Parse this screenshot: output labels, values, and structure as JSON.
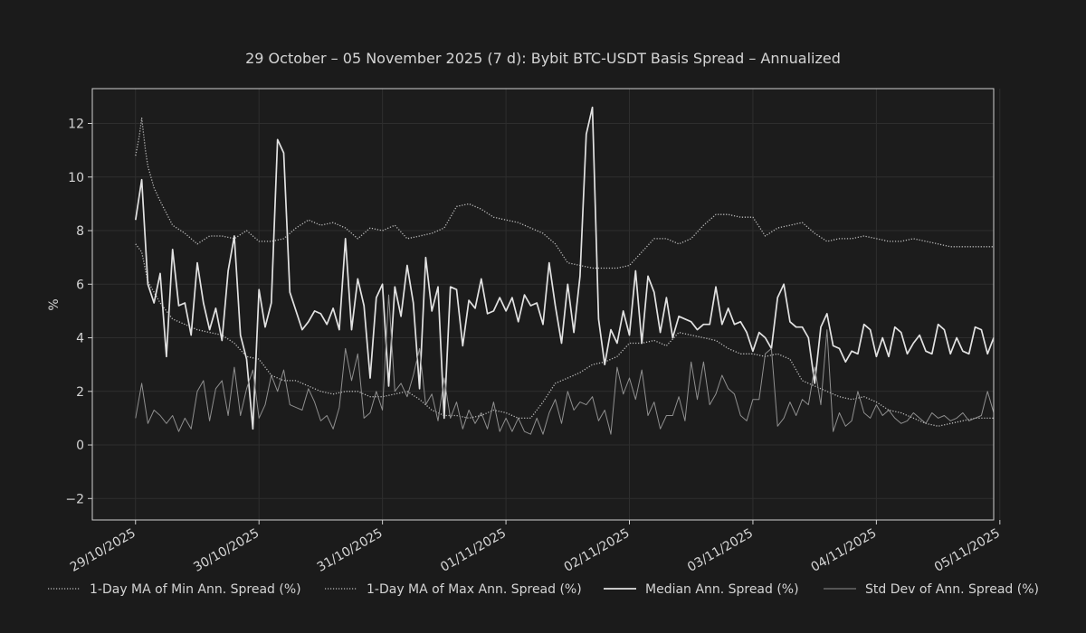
{
  "chart_data": {
    "type": "line",
    "title": "29 October – 05 November 2025 (7 d): Bybit BTC-USDT Basis Spread – Annualized",
    "xlabel": "",
    "ylabel": "%",
    "ylim": [
      -2.8,
      13.3
    ],
    "xlim": [
      -0.35,
      6.95
    ],
    "yticks": [
      -2,
      0,
      2,
      4,
      6,
      8,
      10,
      12
    ],
    "ytick_labels": [
      "−2",
      "0",
      "2",
      "4",
      "6",
      "8",
      "10",
      "12"
    ],
    "xticks": [
      0,
      1,
      2,
      3,
      4,
      5,
      6,
      7
    ],
    "xtick_labels": [
      "29/10/2025",
      "30/10/2025",
      "31/10/2025",
      "01/11/2025",
      "02/11/2025",
      "03/11/2025",
      "04/11/2025",
      "05/11/2025"
    ],
    "grid": true,
    "legend_position": "bottom",
    "series": [
      {
        "name": "1-Day MA of Min Ann. Spread (%)",
        "style": "dotted",
        "color": "#bdbdbd",
        "x": [
          0,
          0.05,
          0.1,
          0.2,
          0.3,
          0.4,
          0.5,
          0.6,
          0.7,
          0.8,
          0.9,
          1.0,
          1.1,
          1.2,
          1.3,
          1.4,
          1.5,
          1.6,
          1.7,
          1.8,
          1.9,
          2.0,
          2.1,
          2.2,
          2.3,
          2.4,
          2.5,
          2.6,
          2.7,
          2.8,
          2.9,
          3.0,
          3.1,
          3.2,
          3.3,
          3.4,
          3.5,
          3.6,
          3.7,
          3.8,
          3.9,
          4.0,
          4.1,
          4.2,
          4.3,
          4.4,
          4.5,
          4.6,
          4.7,
          4.8,
          4.9,
          5.0,
          5.1,
          5.2,
          5.3,
          5.4,
          5.5,
          5.6,
          5.7,
          5.8,
          5.9,
          6.0,
          6.1,
          6.2,
          6.3,
          6.4,
          6.5,
          6.6,
          6.7,
          6.8,
          6.9,
          6.95
        ],
        "values": [
          7.5,
          7.2,
          6.1,
          5.3,
          4.7,
          4.5,
          4.3,
          4.2,
          4.1,
          3.8,
          3.3,
          3.2,
          2.6,
          2.4,
          2.4,
          2.2,
          2.0,
          1.9,
          2.0,
          2.0,
          1.8,
          1.8,
          1.9,
          2.0,
          1.7,
          1.3,
          1.1,
          1.1,
          1.0,
          1.1,
          1.3,
          1.2,
          1.0,
          1.0,
          1.6,
          2.3,
          2.5,
          2.7,
          3.0,
          3.1,
          3.3,
          3.8,
          3.8,
          3.9,
          3.7,
          4.2,
          4.1,
          4.0,
          3.9,
          3.6,
          3.4,
          3.4,
          3.3,
          3.4,
          3.2,
          2.4,
          2.2,
          2.0,
          1.8,
          1.7,
          1.8,
          1.6,
          1.3,
          1.2,
          1.0,
          0.8,
          0.7,
          0.8,
          0.9,
          1.0,
          1.0,
          1.0
        ]
      },
      {
        "name": "1-Day MA of Max Ann. Spread (%)",
        "style": "dotted",
        "color": "#bdbdbd",
        "x": [
          0,
          0.03,
          0.05,
          0.08,
          0.1,
          0.15,
          0.2,
          0.3,
          0.4,
          0.5,
          0.6,
          0.7,
          0.8,
          0.9,
          1.0,
          1.1,
          1.2,
          1.3,
          1.4,
          1.5,
          1.6,
          1.7,
          1.8,
          1.9,
          2.0,
          2.1,
          2.2,
          2.3,
          2.4,
          2.5,
          2.6,
          2.7,
          2.8,
          2.9,
          3.0,
          3.1,
          3.2,
          3.3,
          3.4,
          3.5,
          3.6,
          3.7,
          3.8,
          3.9,
          4.0,
          4.1,
          4.2,
          4.3,
          4.4,
          4.5,
          4.6,
          4.7,
          4.8,
          4.9,
          5.0,
          5.1,
          5.2,
          5.3,
          5.4,
          5.5,
          5.6,
          5.7,
          5.8,
          5.9,
          6.0,
          6.1,
          6.2,
          6.3,
          6.4,
          6.5,
          6.6,
          6.7,
          6.8,
          6.9,
          6.95
        ],
        "values": [
          10.8,
          11.5,
          12.2,
          11.0,
          10.4,
          9.6,
          9.1,
          8.2,
          7.9,
          7.5,
          7.8,
          7.8,
          7.7,
          8.0,
          7.6,
          7.6,
          7.7,
          8.1,
          8.4,
          8.2,
          8.3,
          8.1,
          7.7,
          8.1,
          8.0,
          8.2,
          7.7,
          7.8,
          7.9,
          8.1,
          8.9,
          9.0,
          8.8,
          8.5,
          8.4,
          8.3,
          8.1,
          7.9,
          7.5,
          6.8,
          6.7,
          6.6,
          6.6,
          6.6,
          6.7,
          7.2,
          7.7,
          7.7,
          7.5,
          7.7,
          8.2,
          8.6,
          8.6,
          8.5,
          8.5,
          7.8,
          8.1,
          8.2,
          8.3,
          7.9,
          7.6,
          7.7,
          7.7,
          7.8,
          7.7,
          7.6,
          7.6,
          7.7,
          7.6,
          7.5,
          7.4,
          7.4,
          7.4,
          7.4,
          7.4
        ]
      },
      {
        "name": "Median Ann. Spread (%)",
        "style": "solid",
        "color": "#e2e2e2",
        "x": [
          0,
          0.05,
          0.1,
          0.15,
          0.2,
          0.25,
          0.3,
          0.35,
          0.4,
          0.45,
          0.5,
          0.55,
          0.6,
          0.65,
          0.7,
          0.75,
          0.8,
          0.85,
          0.9,
          0.95,
          1.0,
          1.05,
          1.1,
          1.15,
          1.2,
          1.25,
          1.3,
          1.35,
          1.4,
          1.45,
          1.5,
          1.55,
          1.6,
          1.65,
          1.7,
          1.75,
          1.8,
          1.85,
          1.9,
          1.95,
          2.0,
          2.05,
          2.1,
          2.15,
          2.2,
          2.25,
          2.3,
          2.35,
          2.4,
          2.45,
          2.5,
          2.55,
          2.6,
          2.65,
          2.7,
          2.75,
          2.8,
          2.85,
          2.9,
          2.95,
          3.0,
          3.05,
          3.1,
          3.15,
          3.2,
          3.25,
          3.3,
          3.35,
          3.4,
          3.45,
          3.5,
          3.55,
          3.6,
          3.65,
          3.7,
          3.75,
          3.8,
          3.85,
          3.9,
          3.95,
          4.0,
          4.05,
          4.1,
          4.15,
          4.2,
          4.25,
          4.3,
          4.35,
          4.4,
          4.45,
          4.5,
          4.55,
          4.6,
          4.65,
          4.7,
          4.75,
          4.8,
          4.85,
          4.9,
          4.95,
          5.0,
          5.05,
          5.1,
          5.15,
          5.2,
          5.25,
          5.3,
          5.35,
          5.4,
          5.45,
          5.5,
          5.55,
          5.6,
          5.65,
          5.7,
          5.75,
          5.8,
          5.85,
          5.9,
          5.95,
          6.0,
          6.05,
          6.1,
          6.15,
          6.2,
          6.25,
          6.3,
          6.35,
          6.4,
          6.45,
          6.5,
          6.55,
          6.6,
          6.65,
          6.7,
          6.75,
          6.8,
          6.85,
          6.9,
          6.95
        ],
        "values": [
          8.4,
          9.9,
          6.0,
          5.3,
          6.4,
          3.3,
          7.3,
          5.2,
          5.3,
          4.1,
          6.8,
          5.3,
          4.3,
          5.1,
          3.9,
          6.5,
          7.8,
          4.1,
          3.2,
          0.6,
          5.8,
          4.4,
          5.3,
          11.4,
          10.9,
          5.7,
          5.0,
          4.3,
          4.6,
          5.0,
          4.9,
          4.5,
          5.1,
          4.3,
          7.7,
          4.3,
          6.2,
          5.2,
          2.5,
          5.5,
          6.0,
          2.2,
          5.9,
          4.8,
          6.7,
          5.3,
          2.1,
          7.0,
          5.0,
          5.9,
          1.0,
          5.9,
          5.8,
          3.7,
          5.4,
          5.1,
          6.2,
          4.9,
          5.0,
          5.5,
          5.0,
          5.5,
          4.6,
          5.6,
          5.2,
          5.3,
          4.5,
          6.8,
          5.2,
          3.8,
          6.0,
          4.2,
          6.3,
          11.6,
          12.6,
          4.7,
          3.0,
          4.3,
          3.8,
          5.0,
          4.1,
          6.5,
          3.8,
          6.3,
          5.7,
          4.2,
          5.5,
          4.0,
          4.8,
          4.7,
          4.6,
          4.3,
          4.5,
          4.5,
          5.9,
          4.5,
          5.1,
          4.5,
          4.6,
          4.2,
          3.5,
          4.2,
          4.0,
          3.6,
          5.5,
          6.0,
          4.6,
          4.4,
          4.4,
          4.0,
          2.3,
          4.4,
          4.9,
          3.7,
          3.6,
          3.1,
          3.5,
          3.4,
          4.5,
          4.3,
          3.3,
          4.0,
          3.3,
          4.4,
          4.2,
          3.4,
          3.8,
          4.1,
          3.5,
          3.4,
          4.5,
          4.3,
          3.4,
          4.0,
          3.5,
          3.4,
          4.4,
          4.3,
          3.4,
          4.0
        ]
      },
      {
        "name": "Std Dev of Ann. Spread (%)",
        "style": "solid",
        "color": "#8f8f8f",
        "x": [
          0,
          0.05,
          0.1,
          0.15,
          0.2,
          0.25,
          0.3,
          0.35,
          0.4,
          0.45,
          0.5,
          0.55,
          0.6,
          0.65,
          0.7,
          0.75,
          0.8,
          0.85,
          0.9,
          0.95,
          1.0,
          1.05,
          1.1,
          1.15,
          1.2,
          1.25,
          1.3,
          1.35,
          1.4,
          1.45,
          1.5,
          1.55,
          1.6,
          1.65,
          1.7,
          1.75,
          1.8,
          1.85,
          1.9,
          1.95,
          2.0,
          2.05,
          2.1,
          2.15,
          2.2,
          2.25,
          2.3,
          2.35,
          2.4,
          2.45,
          2.5,
          2.55,
          2.6,
          2.65,
          2.7,
          2.75,
          2.8,
          2.85,
          2.9,
          2.95,
          3.0,
          3.05,
          3.1,
          3.15,
          3.2,
          3.25,
          3.3,
          3.35,
          3.4,
          3.45,
          3.5,
          3.55,
          3.6,
          3.65,
          3.7,
          3.75,
          3.8,
          3.85,
          3.9,
          3.95,
          4.0,
          4.05,
          4.1,
          4.15,
          4.2,
          4.25,
          4.3,
          4.35,
          4.4,
          4.45,
          4.5,
          4.55,
          4.6,
          4.65,
          4.7,
          4.75,
          4.8,
          4.85,
          4.9,
          4.95,
          5.0,
          5.05,
          5.1,
          5.15,
          5.2,
          5.25,
          5.3,
          5.35,
          5.4,
          5.45,
          5.5,
          5.55,
          5.6,
          5.65,
          5.7,
          5.75,
          5.8,
          5.85,
          5.9,
          5.95,
          6.0,
          6.05,
          6.1,
          6.15,
          6.2,
          6.25,
          6.3,
          6.35,
          6.4,
          6.45,
          6.5,
          6.55,
          6.6,
          6.65,
          6.7,
          6.75,
          6.8,
          6.85,
          6.9,
          6.95
        ],
        "values": [
          1.0,
          2.3,
          0.8,
          1.3,
          1.1,
          0.8,
          1.1,
          0.5,
          1.0,
          0.6,
          2.0,
          2.4,
          0.9,
          2.1,
          2.4,
          1.1,
          2.9,
          1.1,
          2.1,
          2.8,
          1.0,
          1.5,
          2.6,
          2.0,
          2.8,
          1.5,
          1.4,
          1.3,
          2.1,
          1.6,
          0.9,
          1.1,
          0.6,
          1.4,
          3.6,
          2.4,
          3.4,
          1.0,
          1.2,
          2.0,
          1.3,
          5.6,
          2.0,
          2.3,
          1.8,
          2.6,
          3.6,
          1.5,
          1.9,
          0.9,
          2.5,
          1.0,
          1.6,
          0.6,
          1.3,
          0.8,
          1.2,
          0.6,
          1.6,
          0.5,
          1.0,
          0.5,
          1.0,
          0.5,
          0.4,
          1.0,
          0.4,
          1.2,
          1.7,
          0.8,
          2.0,
          1.3,
          1.6,
          1.5,
          1.8,
          0.9,
          1.3,
          0.4,
          2.9,
          1.9,
          2.5,
          1.7,
          2.8,
          1.1,
          1.6,
          0.6,
          1.1,
          1.1,
          1.8,
          0.9,
          3.1,
          1.7,
          3.1,
          1.5,
          1.9,
          2.6,
          2.1,
          1.9,
          1.1,
          0.9,
          1.7,
          1.7,
          3.4,
          3.6,
          0.7,
          1.0,
          1.6,
          1.1,
          1.7,
          1.5,
          2.9,
          1.5,
          4.3,
          0.5,
          1.2,
          0.7,
          0.9,
          2.0,
          1.2,
          1.0,
          1.5,
          1.1,
          1.3,
          1.0,
          0.8,
          0.9,
          1.2,
          1.0,
          0.8,
          1.2,
          1.0,
          1.1,
          0.9,
          1.0,
          1.2,
          0.9,
          1.0,
          1.1,
          2.0,
          1.2
        ]
      }
    ]
  }
}
